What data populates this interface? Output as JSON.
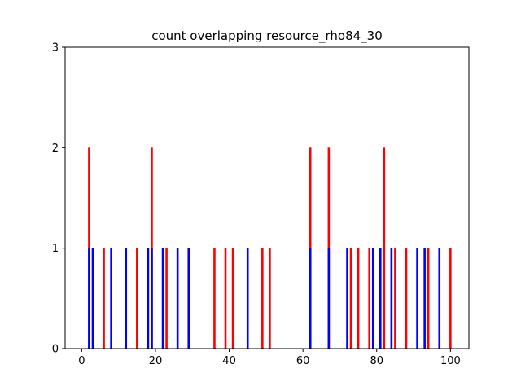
{
  "chart_data": {
    "type": "bar",
    "title": "count overlapping resource_rho84_30",
    "xlabel": "",
    "ylabel": "",
    "xlim": [
      -4.5,
      105
    ],
    "ylim": [
      0,
      3
    ],
    "xticks": [
      0,
      20,
      40,
      60,
      80,
      100
    ],
    "yticks": [
      0,
      1,
      2,
      3
    ],
    "grid": false,
    "legend": "none",
    "series": [
      {
        "color": "#ff0000",
        "x": [
          2,
          6,
          15,
          19,
          23,
          36,
          39,
          41,
          49,
          51,
          62,
          67,
          73,
          75,
          78,
          82,
          85,
          88,
          94,
          100
        ],
        "values": [
          2,
          1,
          1,
          2,
          1,
          1,
          1,
          1,
          1,
          1,
          2,
          2,
          1,
          1,
          1,
          2,
          1,
          1,
          1,
          1
        ]
      },
      {
        "color": "#0000ff",
        "x": [
          2,
          3,
          8,
          12,
          18,
          19,
          22,
          26,
          29,
          45,
          62,
          67,
          72,
          79,
          81,
          84,
          91,
          93,
          97
        ],
        "values": [
          1,
          1,
          1,
          1,
          1,
          1,
          1,
          1,
          1,
          1,
          1,
          1,
          1,
          1,
          1,
          1,
          1,
          1,
          1
        ]
      }
    ]
  }
}
